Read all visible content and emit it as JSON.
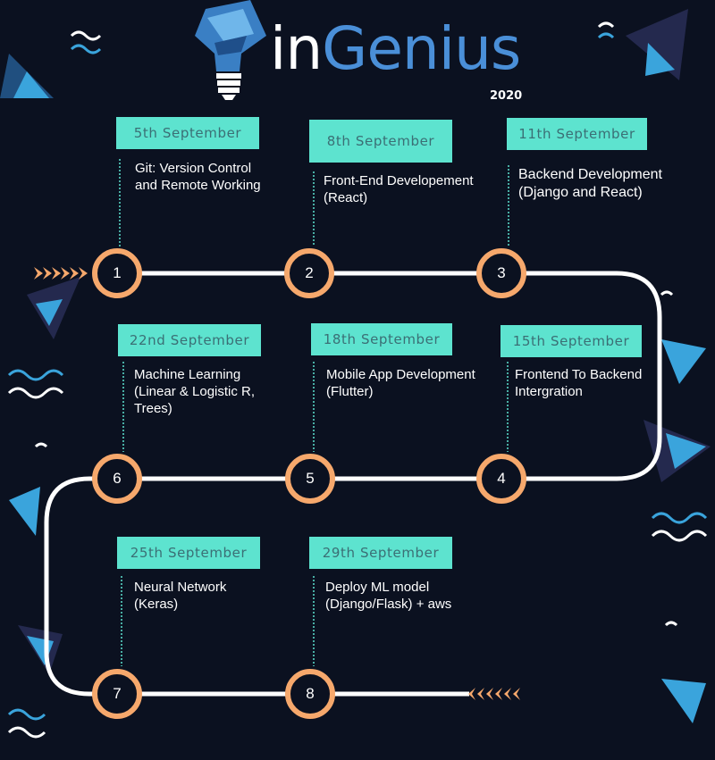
{
  "header": {
    "brand_prefix": "in",
    "brand_name": "Genius",
    "year": "2020"
  },
  "colors": {
    "background": "#0b1120",
    "date_box": "#5de3cf",
    "date_text": "#3b6f75",
    "node_ring": "#f6a86c",
    "path": "#ffffff",
    "accent_blue": "#38a3d8"
  },
  "timeline": [
    {
      "step": "1",
      "date": "5th September",
      "title": "Git: Version Control\nand Remote Working"
    },
    {
      "step": "2",
      "date": "8th September",
      "title": "Front-End Developement\n(React)"
    },
    {
      "step": "3",
      "date": "11th September",
      "title": "Backend Development\n(Django and React)"
    },
    {
      "step": "4",
      "date": "15th September",
      "title": "Frontend To Backend\nIntergration"
    },
    {
      "step": "5",
      "date": "18th September",
      "title": "Mobile App Development\n(Flutter)"
    },
    {
      "step": "6",
      "date": "22nd September",
      "title": "Machine Learning\n(Linear & Logistic R,\nTrees)"
    },
    {
      "step": "7",
      "date": "25th September",
      "title": "Neural Network\n(Keras)"
    },
    {
      "step": "8",
      "date": "29th September",
      "title": "Deploy ML model\n(Django/Flask) + aws"
    }
  ]
}
